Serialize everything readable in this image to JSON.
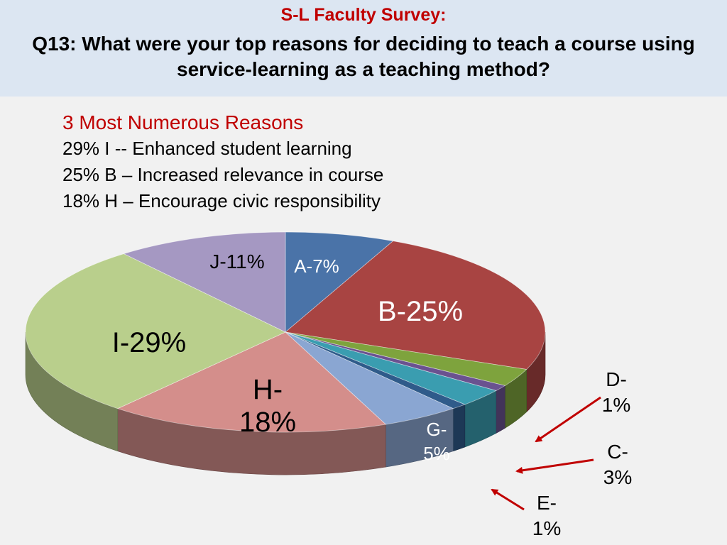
{
  "header": {
    "title_line1": "S-L Faculty Survey:",
    "title_line2": "Q13: What were your top reasons for deciding to teach a course using service-learning as a teaching method?"
  },
  "summary": {
    "heading": "3 Most Numerous Reasons",
    "items": [
      "29%   I -- Enhanced student learning",
      "25%  B – Increased relevance in course",
      "18%  H – Encourage civic responsibility"
    ]
  },
  "chart_data": {
    "type": "pie",
    "slices": [
      {
        "key": "A",
        "value": 7,
        "label_lines": [
          "A-7%"
        ],
        "color": "#4a73a8"
      },
      {
        "key": "B",
        "value": 25,
        "label_lines": [
          "B-25%"
        ],
        "color": "#a84442"
      },
      {
        "key": "F",
        "value": 3,
        "label_lines": [],
        "color": "#7ea33d"
      },
      {
        "key": "D",
        "value": 1,
        "label_lines": [
          "D-",
          "1%"
        ],
        "color": "#6a5290"
      },
      {
        "key": "C",
        "value": 3,
        "label_lines": [
          "C-",
          "3%"
        ],
        "color": "#3a9db0"
      },
      {
        "key": "E",
        "value": 1,
        "label_lines": [
          "E-",
          "1%"
        ],
        "color": "#2f5b8a"
      },
      {
        "key": "G",
        "value": 5,
        "label_lines": [
          "G-",
          "5%"
        ],
        "color": "#8aa6d2"
      },
      {
        "key": "H",
        "value": 18,
        "label_lines": [
          "H-",
          "18%"
        ],
        "color": "#d48e8b"
      },
      {
        "key": "I",
        "value": 29,
        "label_lines": [
          "I-29%"
        ],
        "color": "#b9cf8c"
      },
      {
        "key": "J",
        "value": 11,
        "label_lines": [
          "J-11%"
        ],
        "color": "#a598c2"
      }
    ]
  }
}
